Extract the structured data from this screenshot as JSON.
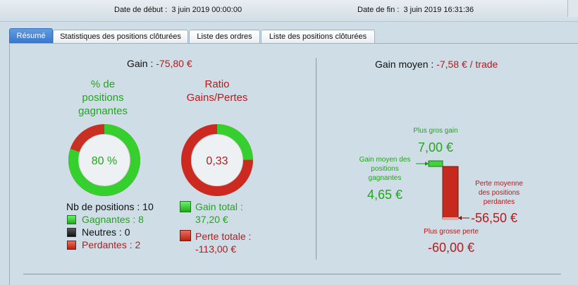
{
  "header": {
    "start_label": "Date de début :",
    "start_value": "3 juin 2019 00:00:00",
    "end_label": "Date de fin :",
    "end_value": "3 juin 2019 16:31:36"
  },
  "tabs": [
    {
      "label": "Résumé"
    },
    {
      "label": "Statistiques des positions clôturées"
    },
    {
      "label": "Liste des ordres"
    },
    {
      "label": "Liste des positions clôturées"
    }
  ],
  "gain": {
    "label": "Gain :",
    "value": "-75,80 €"
  },
  "win_pct": {
    "title": "% de\npositions\ngagnantes",
    "value": "80 %",
    "fraction": 0.8
  },
  "ratio": {
    "title": "Ratio\nGains/Pertes",
    "value": "0,33",
    "fraction": 0.248
  },
  "positions": {
    "count_label": "Nb de positions : 10",
    "winners": "Gagnantes : 8",
    "neutral": "Neutres : 0",
    "losers": "Perdantes : 2"
  },
  "totals": {
    "gain_label": "Gain total :",
    "gain_value": "37,20 €",
    "loss_label": "Perte totale :",
    "loss_value": "-113,00 €"
  },
  "avg": {
    "label": "Gain moyen :",
    "value": "-7,58 € / trade",
    "biggest_gain_label": "Plus gros gain",
    "biggest_gain_value": "7,00 €",
    "avg_win_label": "Gain moyen des\npositions\ngagnantes",
    "avg_win_value": "4,65 €",
    "avg_loss_label": "Perte moyenne\ndes positions\nperdantes",
    "avg_loss_value": "-56,50 €",
    "biggest_loss_label": "Plus grosse perte",
    "biggest_loss_value": "-60,00 €"
  },
  "colors": {
    "win": "#22a61c",
    "loss": "#b51c1c",
    "accent": "#3775c9"
  }
}
